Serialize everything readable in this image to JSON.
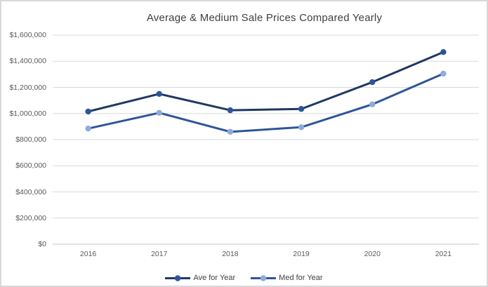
{
  "chart_data": {
    "type": "line",
    "title": "Average & Medium Sale Prices Compared Yearly",
    "categories": [
      "2016",
      "2017",
      "2018",
      "2019",
      "2020",
      "2021"
    ],
    "series": [
      {
        "name": "Ave for Year",
        "values": [
          1015000,
          1150000,
          1025000,
          1035000,
          1240000,
          1470000
        ],
        "line_color": "#1f3864",
        "marker_color": "#2e5597"
      },
      {
        "name": "Med for Year",
        "values": [
          885000,
          1005000,
          860000,
          895000,
          1070000,
          1305000
        ],
        "line_color": "#2e5597",
        "marker_color": "#8faadc"
      }
    ],
    "xlabel": "",
    "ylabel": "",
    "ylim": [
      0,
      1600000
    ],
    "ytick_step": 200000,
    "ytick_labels": [
      "$0",
      "$200,000",
      "$400,000",
      "$600,000",
      "$800,000",
      "$1,000,000",
      "$1,200,000",
      "$1,400,000",
      "$1,600,000"
    ],
    "grid": true,
    "legend_position": "bottom",
    "colors": {
      "gridline": "#d9d9d9",
      "axis_line": "#c6c6c6",
      "title_text": "#404040",
      "tick_text": "#595959",
      "legend_text": "#404040",
      "background": "#ffffff",
      "border": "#d9d9d9"
    }
  }
}
